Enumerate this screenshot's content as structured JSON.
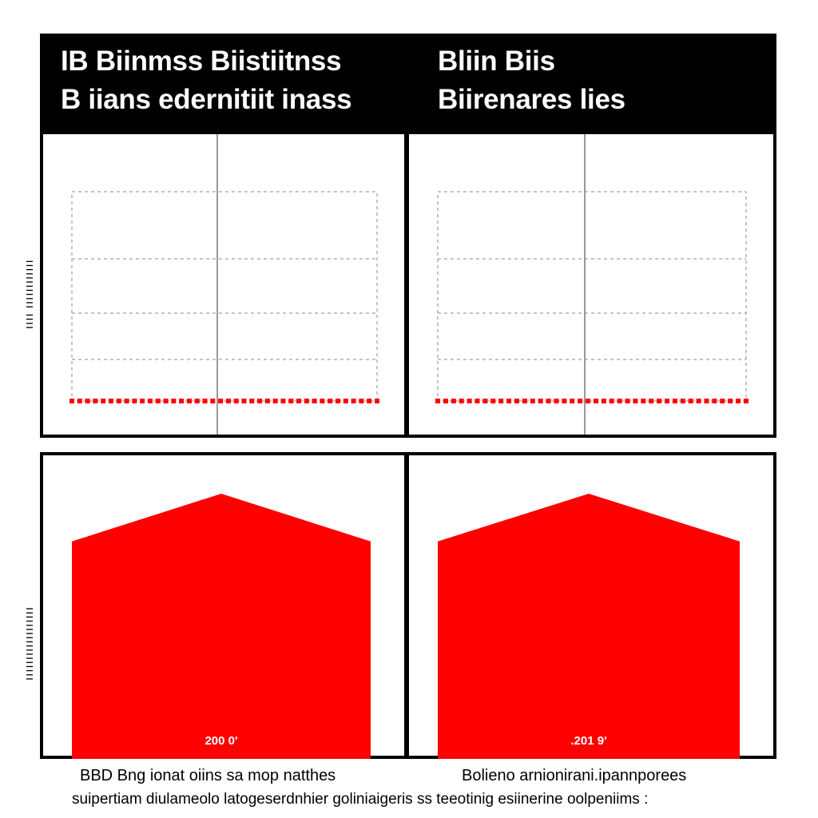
{
  "header": {
    "left_title_line1": "IB Biinmss Biistiitnss",
    "left_title_line2": "B iians edernitiit inass",
    "right_title_line1": "Bliin Biis",
    "right_title_line2": "Biirenares  lies"
  },
  "side_labels": {
    "top": "ıııı ıııııııııııı",
    "bottom": "ıııııııııııııııııı"
  },
  "captions": {
    "left": "BBD Bng ionat oiins sa mop natthes",
    "right": "Bolieno arnionirani.ipannporees",
    "bottom": "suipertiam diulameolo latogeserdnhier goliniaigeris ss teeotinig esiinerine oolpeniims :"
  },
  "colors": {
    "accent": "#ff0000",
    "header_bg": "#000000",
    "grid": "#888888"
  },
  "chart_data": [
    {
      "type": "line",
      "panel": "top-left",
      "title": "",
      "series": [
        {
          "values": [
            0,
            0,
            0,
            0,
            0,
            0,
            0,
            0,
            0,
            0,
            0,
            0,
            0,
            0,
            0,
            0,
            0,
            0,
            0,
            0,
            0,
            0,
            0,
            0,
            0,
            0,
            0,
            0,
            0,
            0,
            0,
            0,
            0,
            0,
            0,
            0,
            0,
            0,
            0,
            0
          ]
        }
      ],
      "grid": true,
      "gridlines": 4
    },
    {
      "type": "line",
      "panel": "top-right",
      "title": "",
      "series": [
        {
          "values": [
            0,
            0,
            0,
            0,
            0,
            0,
            0,
            0,
            0,
            0,
            0,
            0,
            0,
            0,
            0,
            0,
            0,
            0,
            0,
            0,
            0,
            0,
            0,
            0,
            0,
            0,
            0,
            0,
            0,
            0,
            0,
            0,
            0,
            0,
            0,
            0,
            0,
            0,
            0,
            0
          ]
        }
      ],
      "grid": true,
      "gridlines": 4
    },
    {
      "type": "area",
      "panel": "bottom-left",
      "title": "",
      "series": [
        {
          "values": [
            0.82,
            1.0,
            0.82
          ]
        }
      ],
      "ylim": [
        0,
        1
      ],
      "data_label": "200 0'"
    },
    {
      "type": "area",
      "panel": "bottom-right",
      "title": "",
      "series": [
        {
          "values": [
            0.82,
            1.0,
            0.82
          ]
        }
      ],
      "ylim": [
        0,
        1
      ],
      "data_label": ".201 9'"
    }
  ]
}
